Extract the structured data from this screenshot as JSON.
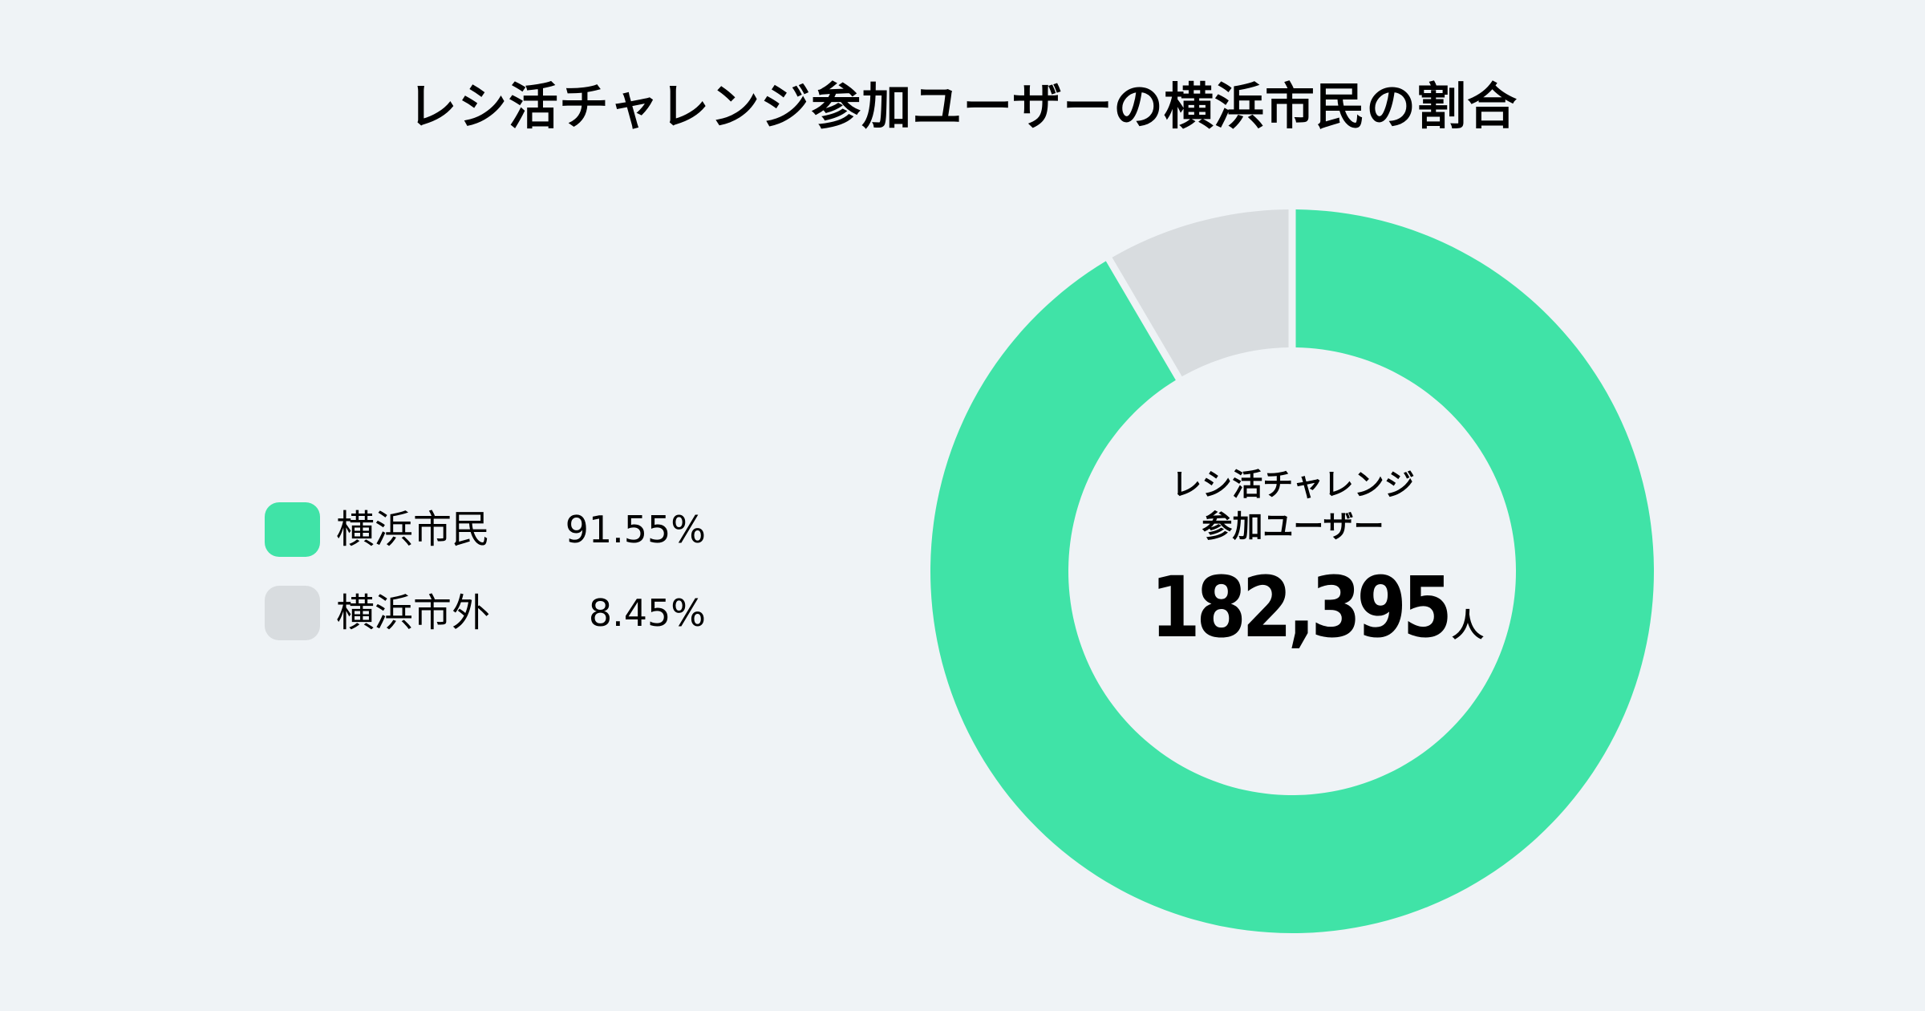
{
  "title": "レシ活チャレンジ参加ユーザーの横浜市民の割合",
  "legend": {
    "items": [
      {
        "label": "横浜市民",
        "value": "91.55%",
        "color": "#40E3A7"
      },
      {
        "label": "横浜市外",
        "value": "8.45%",
        "color": "#D8DCDF"
      }
    ]
  },
  "center": {
    "label_line1": "レシ活チャレンジ",
    "label_line2": "参加ユーザー",
    "total": "182,395",
    "unit": "人"
  },
  "colors": {
    "background": "#EFF3F6",
    "resident": "#40E3A7",
    "non_resident": "#D8DCDF"
  },
  "chart_data": {
    "type": "pie",
    "subtype": "donut",
    "title": "レシ活チャレンジ参加ユーザーの横浜市民の割合",
    "categories": [
      "横浜市民",
      "横浜市外"
    ],
    "values": [
      91.55,
      8.45
    ],
    "unit": "%",
    "colors": [
      "#40E3A7",
      "#D8DCDF"
    ],
    "center_annotation": "レシ活チャレンジ参加ユーザー 182,395人",
    "total_users": 182395,
    "legend_position": "left"
  }
}
